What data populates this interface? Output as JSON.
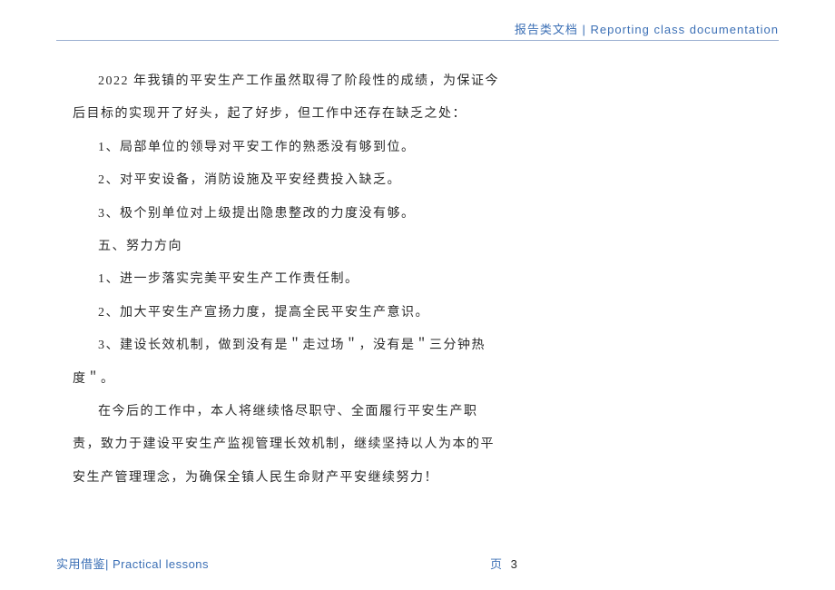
{
  "header": {
    "text": "报告类文档 | Reporting class documentation"
  },
  "body": {
    "p1": "2022 年我镇的平安生产工作虽然取得了阶段性的成绩，为保证今后目标的实现开了好头，起了好步，但工作中还存在缺乏之处：",
    "i1": "1、局部单位的领导对平安工作的熟悉没有够到位。",
    "i2": "2、对平安设备，消防设施及平安经费投入缺乏。",
    "i3": "3、极个别单位对上级提出隐患整改的力度没有够。",
    "h5": "五、努力方向",
    "j1": "1、进一步落实完美平安生产工作责任制。",
    "j2": "2、加大平安生产宣扬力度，提高全民平安生产意识。",
    "j3": "3、建设长效机制，做到没有是＂走过场＂，没有是＂三分钟热度＂。",
    "p2": "在今后的工作中，本人将继续恪尽职守、全面履行平安生产职责，致力于建设平安生产监视管理长效机制，继续坚持以人为本的平安生产管理理念，为确保全镇人民生命财产平安继续努力！"
  },
  "footer": {
    "left": "实用借鉴| Practical lessons",
    "page_label": "页",
    "page_num": "3"
  },
  "colors": {
    "accent": "#3b6fb5",
    "rule": "#9aaed0",
    "text": "#2a2a2a",
    "bg": "#ffffff"
  }
}
